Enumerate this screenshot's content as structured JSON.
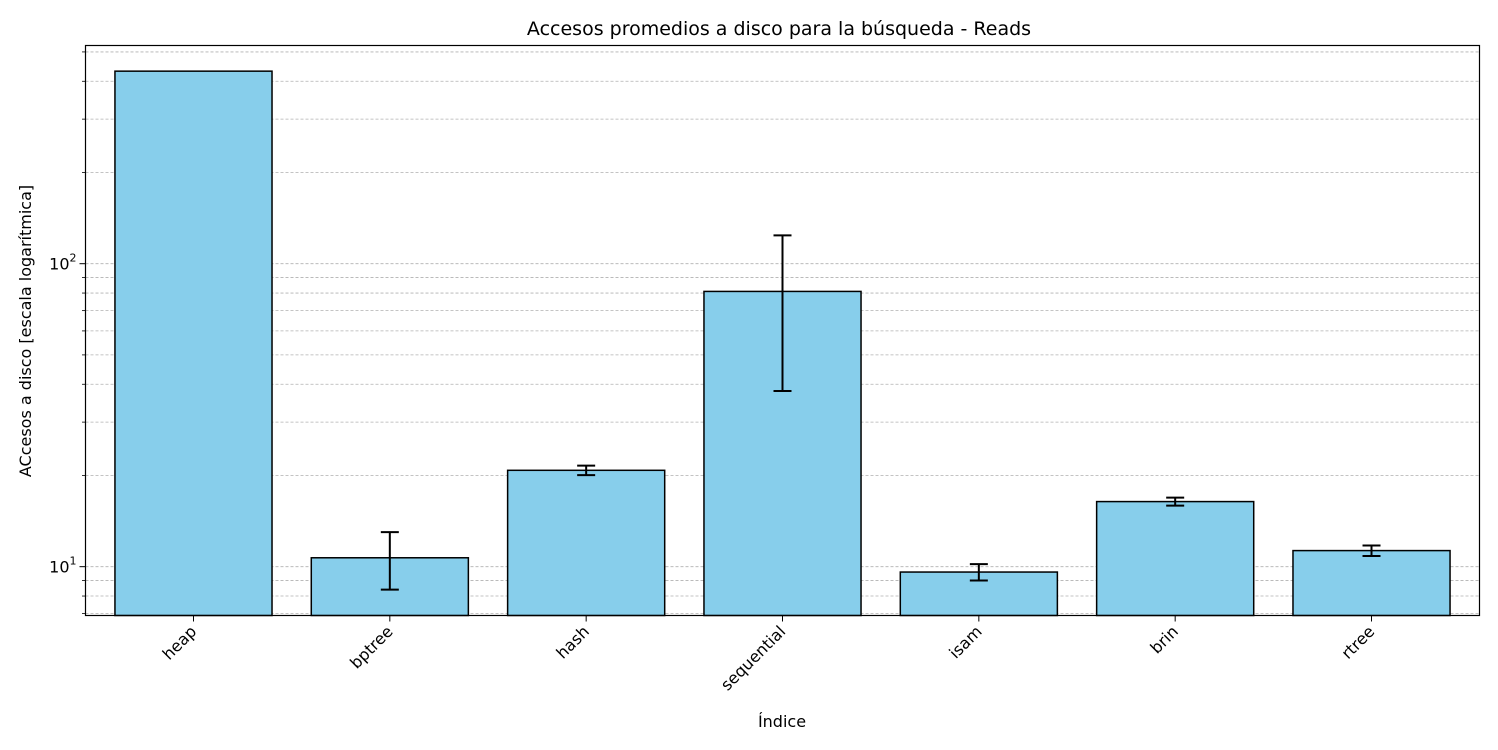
{
  "chart_data": {
    "type": "bar",
    "title": "Accesos promedios a disco para la búsqueda - Reads",
    "xlabel": "Índice",
    "ylabel": "ACcesos a disco [escala logarítmica]",
    "yscale": "log",
    "ylim": [
      6.9,
      525
    ],
    "yticks": [
      {
        "value": 10,
        "base": "10",
        "exp": "1"
      },
      {
        "value": 100,
        "base": "10",
        "exp": "2"
      }
    ],
    "grid": "y (major and minor), dashed",
    "categories": [
      "heap",
      "bptree",
      "hash",
      "sequential",
      "isam",
      "brin",
      "rtree"
    ],
    "values": [
      432,
      10.7,
      20.8,
      81,
      9.6,
      16.4,
      11.3
    ],
    "errors": [
      0,
      2.3,
      0.75,
      43,
      0.6,
      0.5,
      0.45
    ],
    "bar_color": "#87ceeb",
    "bar_edge_color": "#000000",
    "error_color": "#000000",
    "grid_color": "#b0b0b0"
  }
}
